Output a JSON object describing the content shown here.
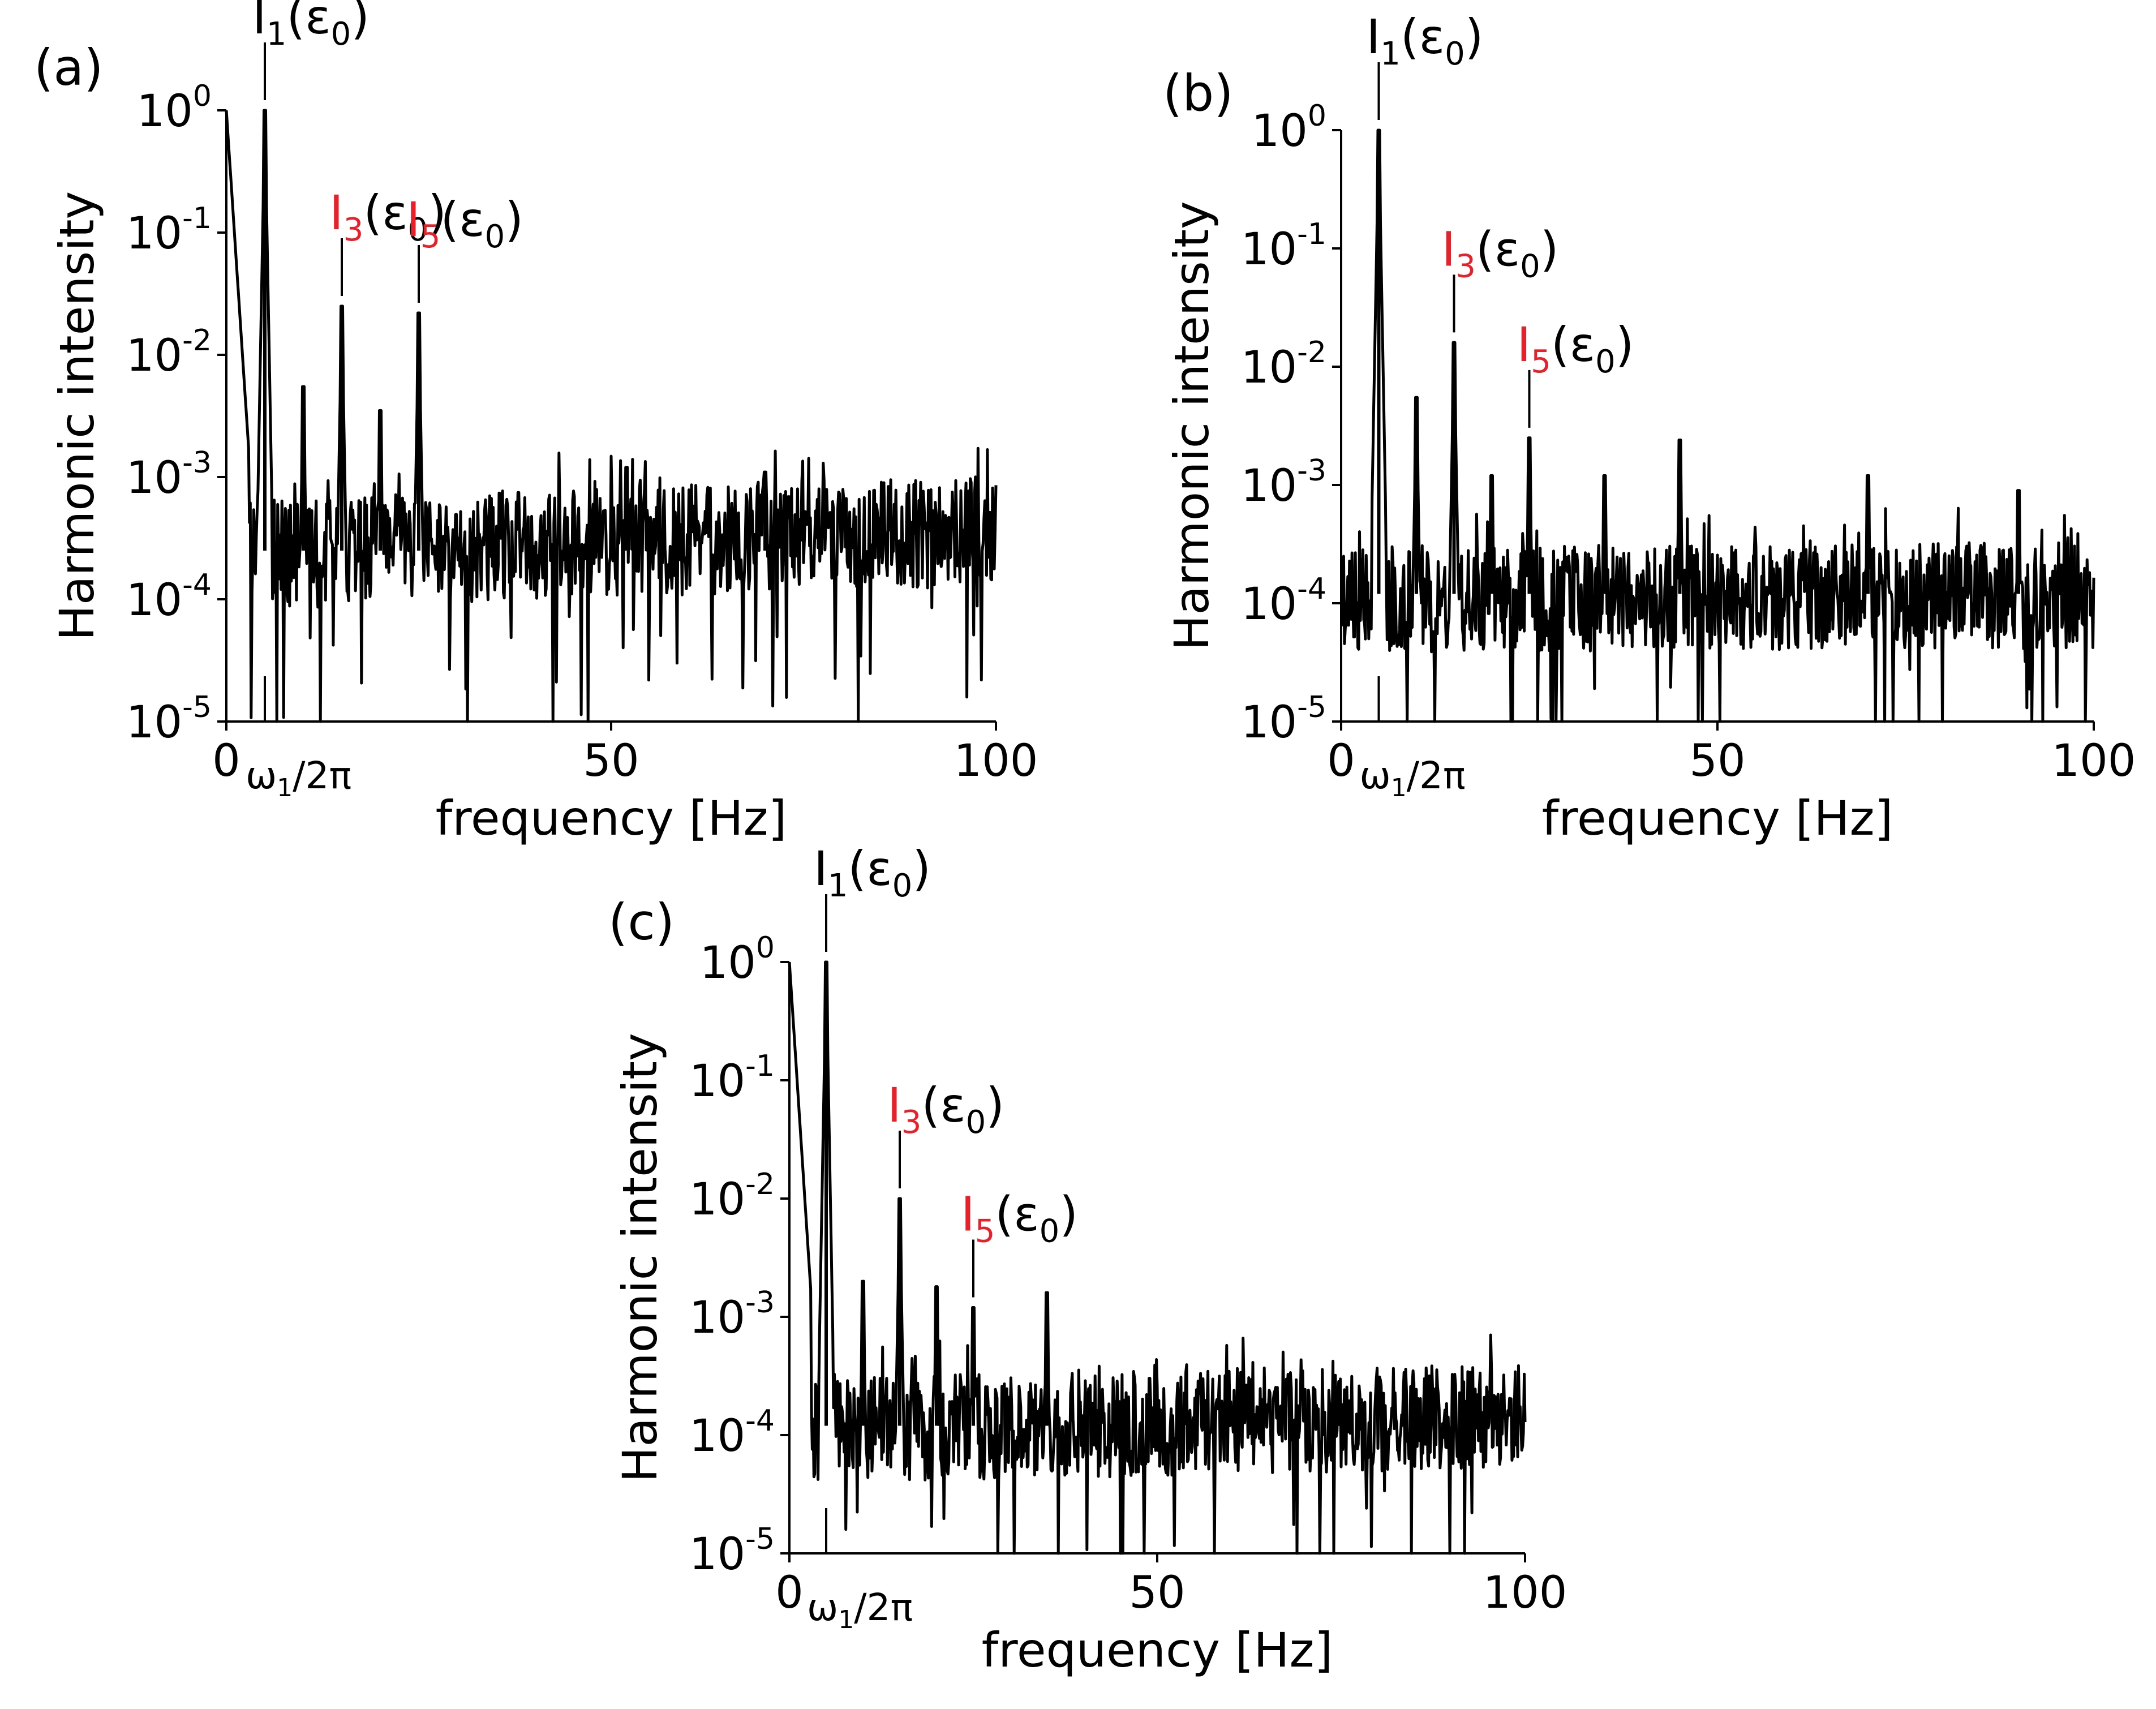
{
  "figure": {
    "colors": {
      "line": "#000000",
      "text": "#000000",
      "highlight": "#e8202a",
      "background": "#ffffff"
    }
  },
  "chart_data": [
    {
      "type": "line",
      "panel": "(a)",
      "xlabel": "frequency [Hz]",
      "ylabel": "Harmonic intensity",
      "xlim": [
        0,
        100
      ],
      "ylim_log10": [
        -5,
        0
      ],
      "yscale": "log",
      "x_ticks": [
        "0",
        "50",
        "100"
      ],
      "x_special_tick_label": {
        "omega": "ω",
        "sub": "1",
        "rest": "/2π",
        "value": 5
      },
      "y_ticks": [
        {
          "base": "10",
          "exp": "0",
          "log": 0
        },
        {
          "base": "10",
          "exp": "-1",
          "log": -1
        },
        {
          "base": "10",
          "exp": "-2",
          "log": -2
        },
        {
          "base": "10",
          "exp": "-3",
          "log": -3
        },
        {
          "base": "10",
          "exp": "-4",
          "log": -4
        },
        {
          "base": "10",
          "exp": "-5",
          "log": -5
        }
      ],
      "peaks": [
        {
          "x": 5,
          "y": 1.0
        },
        {
          "x": 10,
          "y": 0.0055
        },
        {
          "x": 15,
          "y": 0.025
        },
        {
          "x": 20,
          "y": 0.0035
        },
        {
          "x": 25,
          "y": 0.022
        },
        {
          "x": 52,
          "y": 0.0012
        },
        {
          "x": 70,
          "y": 0.0011
        }
      ],
      "low_freq_start": {
        "x": 0,
        "y": 1.0
      },
      "noise": {
        "level": 0.00025,
        "seed": 11,
        "rise_to_100": 0.0004
      },
      "annotations": [
        {
          "base": "I",
          "sub": "1",
          "arg": "(ε",
          "argsub": "0",
          "close": ")",
          "x": 5,
          "y": 1.0,
          "red": false
        },
        {
          "base": "I",
          "sub": "3",
          "arg": "(ε",
          "argsub": "0",
          "close": ")",
          "x": 15,
          "y": 0.025,
          "red": true
        },
        {
          "base": "I",
          "sub": "5",
          "arg": "(ε",
          "argsub": "0",
          "close": ")",
          "x": 25,
          "y": 0.022,
          "red": true
        }
      ]
    },
    {
      "type": "line",
      "panel": "(b)",
      "xlabel": "frequency [Hz]",
      "ylabel": "Harmonic intensity",
      "xlim": [
        0,
        100
      ],
      "ylim_log10": [
        -5,
        0
      ],
      "yscale": "log",
      "x_ticks": [
        "0",
        "50",
        "100"
      ],
      "x_special_tick_label": {
        "omega": "ω",
        "sub": "1",
        "rest": "/2π",
        "value": 5
      },
      "y_ticks": [
        {
          "base": "10",
          "exp": "0",
          "log": 0
        },
        {
          "base": "10",
          "exp": "-1",
          "log": -1
        },
        {
          "base": "10",
          "exp": "-2",
          "log": -2
        },
        {
          "base": "10",
          "exp": "-3",
          "log": -3
        },
        {
          "base": "10",
          "exp": "-4",
          "log": -4
        },
        {
          "base": "10",
          "exp": "-5",
          "log": -5
        }
      ],
      "peaks": [
        {
          "x": 5,
          "y": 1.0
        },
        {
          "x": 10,
          "y": 0.0055
        },
        {
          "x": 15,
          "y": 0.016
        },
        {
          "x": 20,
          "y": 0.0012
        },
        {
          "x": 25,
          "y": 0.0025
        },
        {
          "x": 35,
          "y": 0.0012
        },
        {
          "x": 45,
          "y": 0.0024
        },
        {
          "x": 70,
          "y": 0.0012
        },
        {
          "x": 90,
          "y": 0.0009
        }
      ],
      "low_freq_start": {
        "x": 0,
        "y": 0.0001
      },
      "noise": {
        "level": 0.00012,
        "seed": 23,
        "rise_to_100": 0.00013
      },
      "annotations": [
        {
          "base": "I",
          "sub": "1",
          "arg": "(ε",
          "argsub": "0",
          "close": ")",
          "x": 5,
          "y": 1.0,
          "red": false
        },
        {
          "base": "I",
          "sub": "3",
          "arg": "(ε",
          "argsub": "0",
          "close": ")",
          "x": 15,
          "y": 0.016,
          "red": true
        },
        {
          "base": "I",
          "sub": "5",
          "arg": "(ε",
          "argsub": "0",
          "close": ")",
          "x": 25,
          "y": 0.0025,
          "red": true
        }
      ]
    },
    {
      "type": "line",
      "panel": "(c)",
      "xlabel": "frequency [Hz]",
      "ylabel": "Harmonic intensity",
      "xlim": [
        0,
        100
      ],
      "ylim_log10": [
        -5,
        0
      ],
      "yscale": "log",
      "x_ticks": [
        "0",
        "50",
        "100"
      ],
      "x_special_tick_label": {
        "omega": "ω",
        "sub": "1",
        "rest": "/2π",
        "value": 5
      },
      "y_ticks": [
        {
          "base": "10",
          "exp": "0",
          "log": 0
        },
        {
          "base": "10",
          "exp": "-1",
          "log": -1
        },
        {
          "base": "10",
          "exp": "-2",
          "log": -2
        },
        {
          "base": "10",
          "exp": "-3",
          "log": -3
        },
        {
          "base": "10",
          "exp": "-4",
          "log": -4
        },
        {
          "base": "10",
          "exp": "-5",
          "log": -5
        }
      ],
      "peaks": [
        {
          "x": 5,
          "y": 1.0
        },
        {
          "x": 10,
          "y": 0.002
        },
        {
          "x": 15,
          "y": 0.01
        },
        {
          "x": 20,
          "y": 0.0018
        },
        {
          "x": 25,
          "y": 0.0012
        },
        {
          "x": 35,
          "y": 0.0016
        }
      ],
      "low_freq_start": {
        "x": 0,
        "y": 1.0
      },
      "noise": {
        "level": 0.00012,
        "seed": 37,
        "rise_to_100": 0.00016
      },
      "annotations": [
        {
          "base": "I",
          "sub": "1",
          "arg": "(ε",
          "argsub": "0",
          "close": ")",
          "x": 5,
          "y": 1.0,
          "red": false
        },
        {
          "base": "I",
          "sub": "3",
          "arg": "(ε",
          "argsub": "0",
          "close": ")",
          "x": 15,
          "y": 0.01,
          "red": true
        },
        {
          "base": "I",
          "sub": "5",
          "arg": "(ε",
          "argsub": "0",
          "close": ")",
          "x": 25,
          "y": 0.0012,
          "red": true
        }
      ]
    }
  ]
}
